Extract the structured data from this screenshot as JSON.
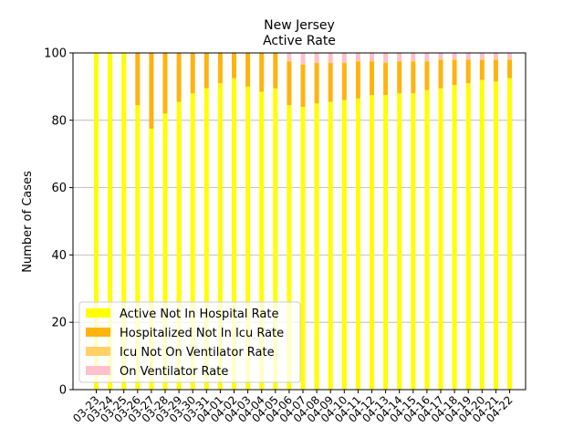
{
  "chart_data": {
    "type": "bar",
    "stacked": true,
    "title": "New Jersey",
    "subtitle": "Active Rate",
    "xlabel": "",
    "ylabel": "Number of Cases",
    "ylim": [
      0,
      100
    ],
    "yticks": [
      0,
      20,
      40,
      60,
      80,
      100
    ],
    "grid": "y",
    "legend_position": "lower-left",
    "categories": [
      "03-23",
      "03-24",
      "03-25",
      "03-26",
      "03-27",
      "03-28",
      "03-29",
      "03-30",
      "03-31",
      "04-01",
      "04-02",
      "04-03",
      "04-04",
      "04-05",
      "04-06",
      "04-07",
      "04-08",
      "04-09",
      "04-10",
      "04-11",
      "04-12",
      "04-13",
      "04-14",
      "04-15",
      "04-16",
      "04-17",
      "04-18",
      "04-19",
      "04-20",
      "04-21",
      "04-22"
    ],
    "series": [
      {
        "name": "Active Not In Hospital Rate",
        "color": "#ffff00",
        "values": [
          100,
          100,
          100,
          84.5,
          77.5,
          82,
          85.5,
          88,
          89.5,
          91,
          92.5,
          90,
          88.5,
          89.5,
          84.5,
          84,
          85,
          85.5,
          86,
          86.5,
          87.5,
          87.5,
          88,
          88,
          89,
          89.5,
          90.5,
          91,
          92,
          91.5,
          92.5
        ]
      },
      {
        "name": "Hospitalized Not In Icu Rate",
        "color": "#ffb30f",
        "values": [
          0,
          0,
          0,
          15.5,
          22.5,
          18,
          14.5,
          12,
          10.5,
          9,
          7.5,
          10,
          11.5,
          10.5,
          13,
          12.5,
          12,
          11.5,
          11,
          11,
          10,
          9.5,
          9.5,
          9.5,
          8.5,
          8.5,
          7.5,
          7,
          6,
          6.5,
          5.5
        ]
      },
      {
        "name": "Icu Not On Ventilator Rate",
        "color": "#ffd166",
        "values": [
          0,
          0,
          0,
          0,
          0,
          0,
          0,
          0,
          0,
          0,
          0,
          0,
          0,
          0,
          0.3,
          0.3,
          0.3,
          0.3,
          0.3,
          0.3,
          0.3,
          0.3,
          0.3,
          0.3,
          0.3,
          0.3,
          0.3,
          0.3,
          0.3,
          0.3,
          0.3
        ]
      },
      {
        "name": "On Ventilator Rate",
        "color": "#ffc0cb",
        "values": [
          0,
          0,
          0,
          0,
          0,
          0,
          0,
          0,
          0,
          0,
          0,
          0,
          0,
          0,
          2.2,
          3.2,
          2.7,
          2.7,
          2.7,
          2.2,
          2.2,
          2.7,
          2.2,
          2.2,
          2.2,
          1.7,
          1.7,
          1.7,
          1.7,
          1.7,
          1.7
        ]
      }
    ]
  }
}
